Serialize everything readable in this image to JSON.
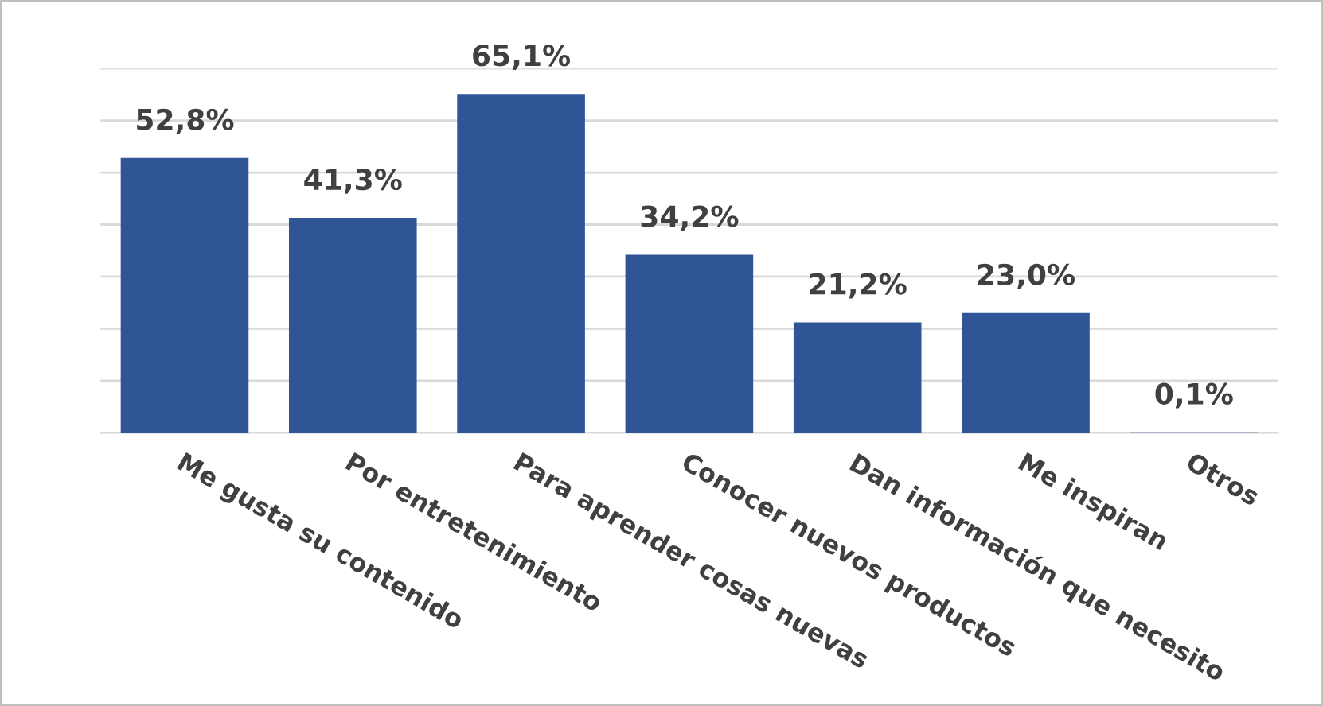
{
  "chart_data": {
    "type": "bar",
    "categories": [
      "Me gusta su contenido",
      "Por entretenimiento",
      "Para aprender cosas nuevas",
      "Conocer nuevos productos",
      "Dan información que necesito",
      "Me inspiran",
      "Otros"
    ],
    "values": [
      52.8,
      41.3,
      65.1,
      34.2,
      21.2,
      23.0,
      0.1
    ],
    "value_labels": [
      "52,8%",
      "41,3%",
      "65,1%",
      "34,2%",
      "21,2%",
      "23,0%",
      "0,1%"
    ],
    "color": "#2f5597",
    "ylim": [
      0,
      70
    ],
    "yticks": [
      {
        "value": 0,
        "label": null
      },
      {
        "value": 10,
        "label": null
      },
      {
        "value": 20,
        "label": null
      },
      {
        "value": 30,
        "label": null
      },
      {
        "value": 40,
        "label": null
      },
      {
        "value": 50,
        "label": null
      },
      {
        "value": 60,
        "label": null
      },
      {
        "value": 70,
        "label": null
      }
    ],
    "grid": "y",
    "legend": false
  }
}
